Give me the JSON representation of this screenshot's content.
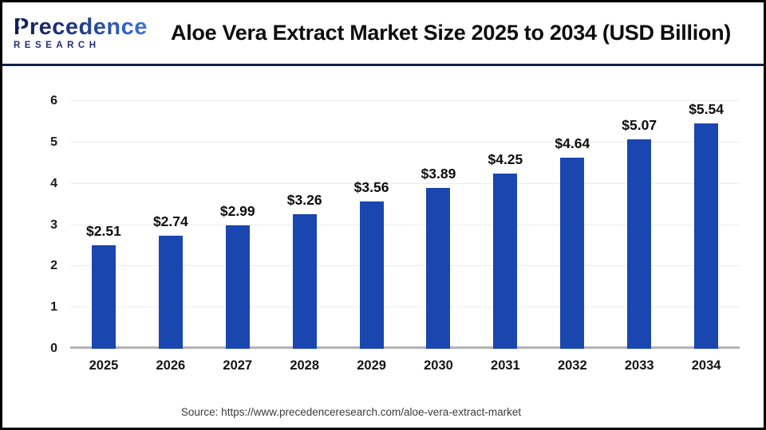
{
  "header": {
    "logo": {
      "line1": "Precedence",
      "line2": "RESEARCH"
    },
    "title": "Aloe Vera Extract Market Size 2025 to 2034 (USD Billion)"
  },
  "chart_data": {
    "type": "bar",
    "title": "Aloe Vera Extract Market Size 2025 to 2034 (USD Billion)",
    "unit": "USD Billion",
    "categories": [
      "2025",
      "2026",
      "2027",
      "2028",
      "2029",
      "2030",
      "2031",
      "2032",
      "2033",
      "2034"
    ],
    "values": [
      2.51,
      2.74,
      2.99,
      3.26,
      3.56,
      3.89,
      4.25,
      4.64,
      5.07,
      5.54
    ],
    "value_labels": [
      "$2.51",
      "$2.74",
      "$2.99",
      "$3.26",
      "$3.56",
      "$3.89",
      "$4.25",
      "$4.64",
      "$5.07",
      "$5.54"
    ],
    "ylim": [
      0,
      6
    ],
    "yticks": [
      0,
      1,
      2,
      3,
      4,
      5,
      6
    ],
    "grid": "horizontal-on",
    "legend": "none",
    "bar_color": "#1A46B0"
  },
  "footer": {
    "source": "Source: https://www.precedenceresearch.com/aloe-vera-extract-market"
  },
  "colors": {
    "bar": "#1A46B0",
    "header_divider": "#13204C",
    "frame_border": "#000000",
    "gridline": "#ECECEC",
    "baseline": "#B4B4B4",
    "logo_navy": "#141F4E",
    "logo_blue": "#3B76D6"
  }
}
